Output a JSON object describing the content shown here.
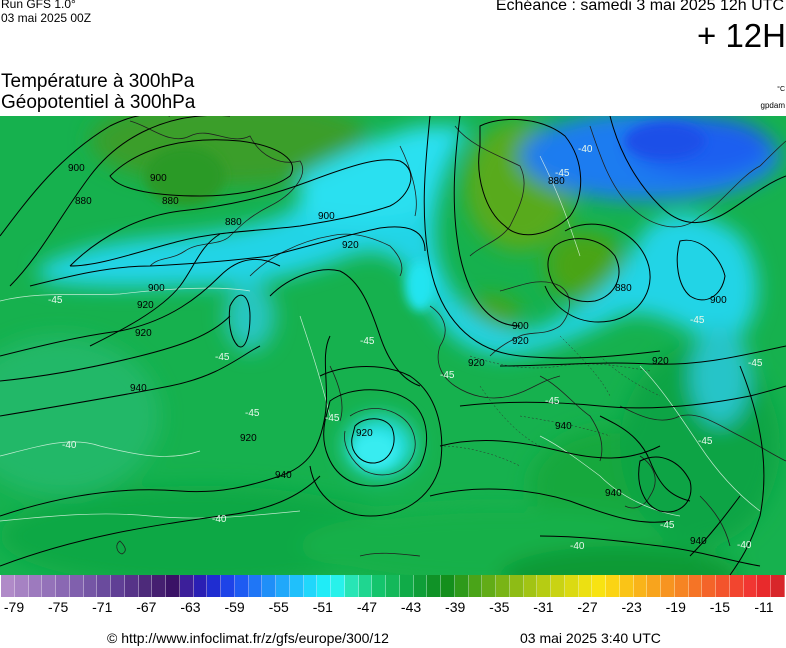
{
  "header": {
    "run": "Run GFS 1.0°",
    "run_date": "03 mai 2025 00Z",
    "echeance": "Echéance : samedi 3 mai 2025 12h UTC",
    "horizon": "+ 12H",
    "title_line1": "Température à 300hPa",
    "title_line2": "Géopotentiel à 300hPa",
    "unit_temp": "°C",
    "unit_geo": "gpdam"
  },
  "map": {
    "contour_labels": [
      "900",
      "880",
      "880",
      "900",
      "880",
      "900",
      "920",
      "920",
      "900",
      "920",
      "940",
      "920",
      "920",
      "880",
      "900",
      "920",
      "940",
      "920",
      "940",
      "880",
      "900",
      "940",
      "920",
      "940"
    ],
    "temp_labels": [
      "-45",
      "-45",
      "-45",
      "-45",
      "-45",
      "-45",
      "-45",
      "-40",
      "-45",
      "-45",
      "-45",
      "-40",
      "-40",
      "-40",
      "-45",
      "-40",
      "-45"
    ]
  },
  "scale": {
    "colors": [
      "#b08ac8",
      "#a682c3",
      "#9d7abe",
      "#9472b9",
      "#8a68b3",
      "#8060ad",
      "#7556a5",
      "#6a4b9d",
      "#603f95",
      "#563388",
      "#4d2a7a",
      "#451f70",
      "#3a1266",
      "#3c1f9a",
      "#2a1fb4",
      "#1f2dd1",
      "#1e43e8",
      "#1e5bf2",
      "#1f76f6",
      "#1f8ff8",
      "#20a8fa",
      "#20c0fb",
      "#20d7fb",
      "#20ecf7",
      "#28f1ea",
      "#28e5b5",
      "#1fd690",
      "#14c46c",
      "#14b85a",
      "#10ab48",
      "#0f9e38",
      "#109227",
      "#148f1c",
      "#2e9a1a",
      "#4aa418",
      "#62ac17",
      "#79b416",
      "#8ebc15",
      "#a2c414",
      "#b6cc13",
      "#c9d313",
      "#dbda12",
      "#ece012",
      "#f8e312",
      "#fbd414",
      "#fac417",
      "#f9b41a",
      "#f8a41d",
      "#f79420",
      "#f68423",
      "#f57426",
      "#f46429",
      "#f3542c",
      "#f2452f",
      "#f13632",
      "#e82a2c",
      "#d8262a"
    ],
    "ticks": [
      "-79",
      "-75",
      "-71",
      "-67",
      "-63",
      "-59",
      "-55",
      "-51",
      "-47",
      "-43",
      "-39",
      "-35",
      "-31",
      "-27",
      "-23",
      "-19",
      "-15",
      "-11"
    ]
  },
  "footer": {
    "url": "© http://www.infoclimat.fr/z/gfs/europe/300/12",
    "datetime": "03 mai 2025  3:40 UTC"
  }
}
